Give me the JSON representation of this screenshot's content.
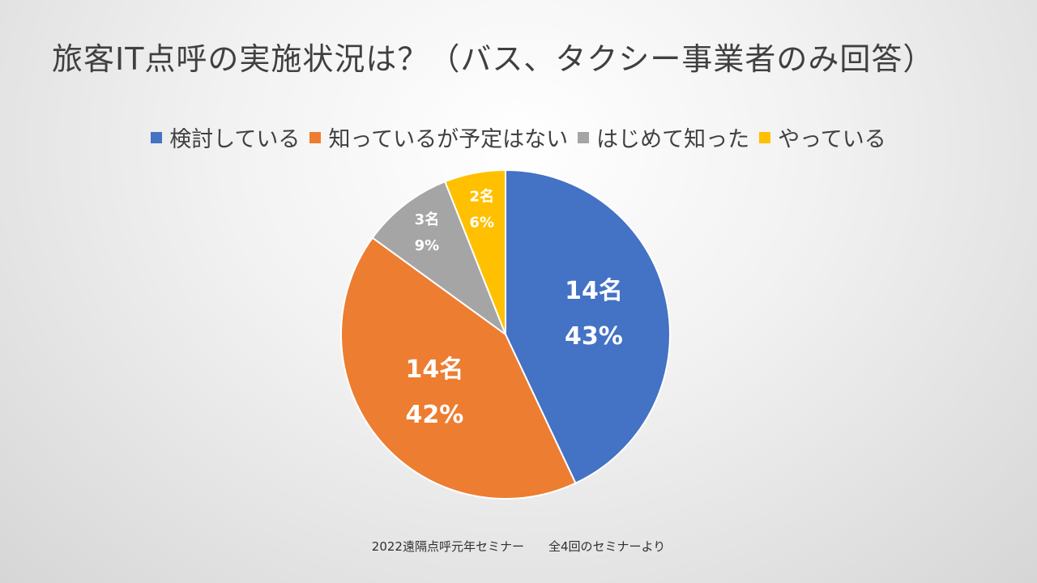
{
  "title": "旅客IT点呼の実施状況は？（バス、タクシー事業者のみ回答）",
  "footer": "2022遠隔点呼元年セミナー　　全4回のセミナーより",
  "chart_data": {
    "type": "pie",
    "start_angle_deg": 0,
    "direction": "clockwise",
    "slices": [
      {
        "label": "検討している",
        "count_label": "14名",
        "percent_label": "43%",
        "value": 43,
        "color": "#4472C4"
      },
      {
        "label": "知っているが予定はない",
        "count_label": "14名",
        "percent_label": "42%",
        "value": 42,
        "color": "#ED7D31"
      },
      {
        "label": "はじめて知った",
        "count_label": "3名",
        "percent_label": "9%",
        "value": 9,
        "color": "#A5A5A5"
      },
      {
        "label": "やっている",
        "count_label": "2名",
        "percent_label": "6%",
        "value": 6,
        "color": "#FFC000"
      }
    ],
    "legend_position": "top"
  }
}
